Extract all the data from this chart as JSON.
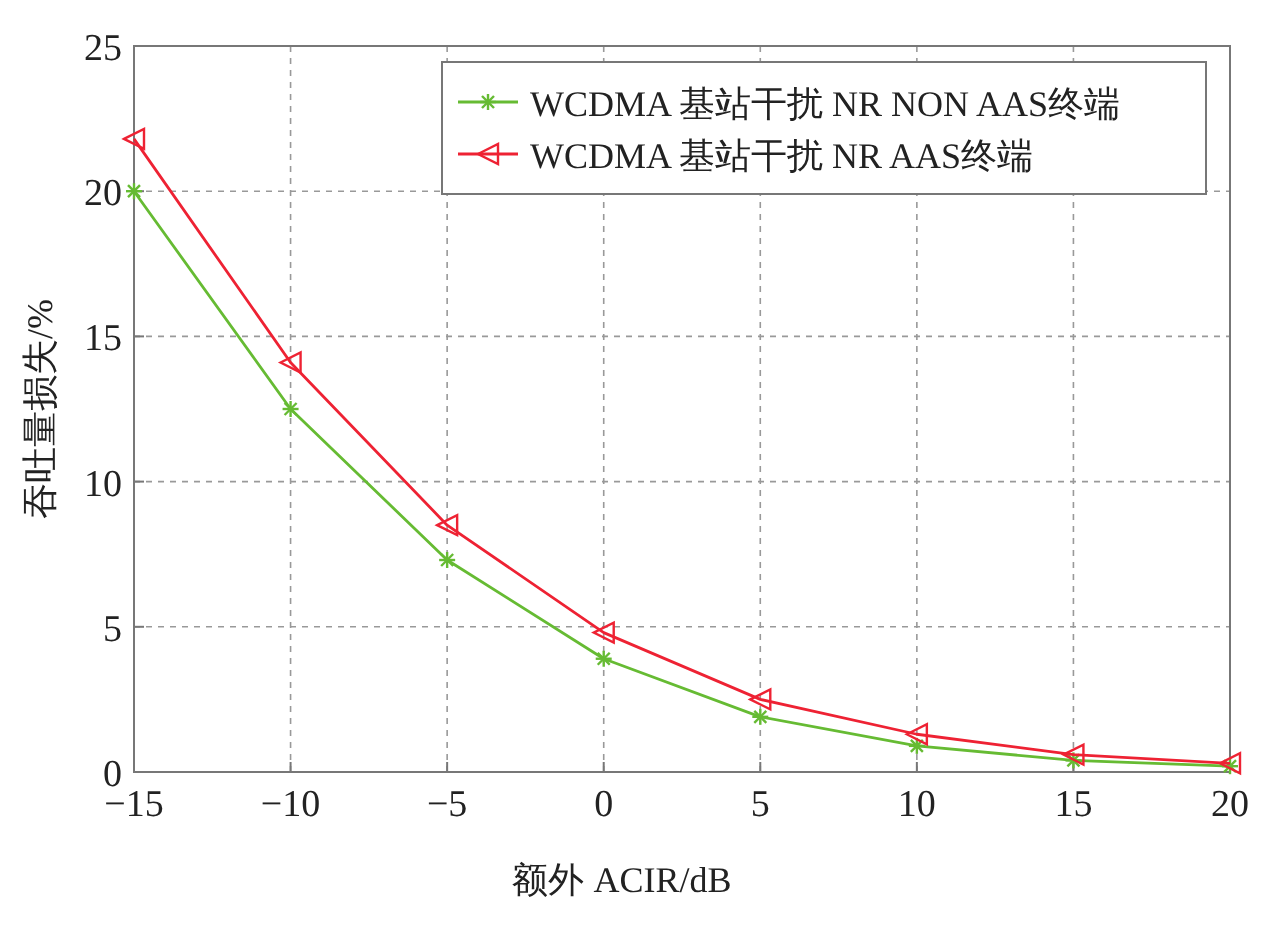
{
  "chart_data": {
    "type": "line",
    "xlabel": "额外 ACIR/dB",
    "ylabel": "吞吐量损失/%",
    "x": [
      -15,
      -10,
      -5,
      0,
      5,
      10,
      15,
      20
    ],
    "series": [
      {
        "name": "WCDMA 基站干扰 NR NON AAS终端",
        "color": "#66bb33",
        "marker": "cross",
        "values": [
          20,
          12.5,
          7.3,
          3.9,
          1.9,
          0.9,
          0.4,
          0.2
        ]
      },
      {
        "name": "WCDMA 基站干扰 NR AAS终端",
        "color": "#ee2233",
        "marker": "triangle",
        "values": [
          21.8,
          14.1,
          8.5,
          4.8,
          2.5,
          1.3,
          0.6,
          0.3
        ]
      }
    ],
    "xlim": [
      -15,
      20
    ],
    "ylim": [
      0,
      25
    ],
    "xticks": [
      -15,
      -10,
      -5,
      0,
      5,
      10,
      15,
      20
    ],
    "yticks": [
      0,
      5,
      10,
      15,
      20,
      25
    ],
    "grid": true,
    "legend": "top right",
    "line_style": "solid"
  }
}
